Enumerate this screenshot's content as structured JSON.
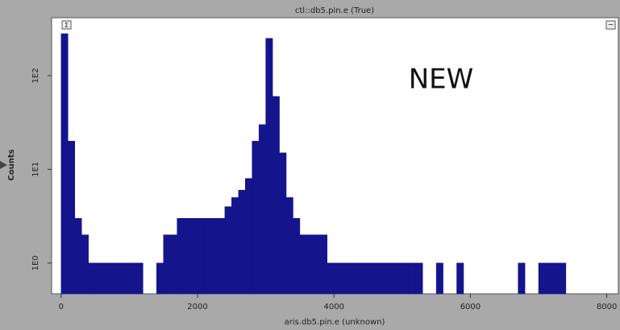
{
  "chart_data": {
    "type": "histogram",
    "title": "ctl::db5.pin.e (True)",
    "xlabel": "aris.db5.pin.e (unknown)",
    "ylabel": "Counts",
    "annotation": "NEW",
    "controls": [
      "Σ",
      "−"
    ],
    "bins": [
      0,
      100,
      200,
      300,
      400,
      500,
      600,
      700,
      800,
      900,
      1000,
      1100,
      1200,
      1300,
      1400,
      1500,
      1600,
      1700,
      1800,
      1900,
      2000,
      2100,
      2200,
      2300,
      2400,
      2500,
      2600,
      2700,
      2800,
      2900,
      3000,
      3100,
      3200,
      3300,
      3400,
      3500,
      3600,
      3700,
      3800,
      3900,
      4000,
      4100,
      4200,
      4300,
      4400,
      4500,
      4600,
      4700,
      4800,
      4900,
      5000,
      5100,
      5200,
      5300,
      5400,
      5500,
      5600,
      5700,
      5800,
      5900,
      6000,
      6100,
      6200,
      6300,
      6400,
      6500,
      6600,
      6700,
      6800,
      6900,
      7000,
      7100,
      7200,
      7300,
      7400,
      7500,
      7600,
      7700,
      7800,
      7900,
      8000,
      8100
    ],
    "values": [
      280,
      20,
      3,
      2,
      1,
      1,
      1,
      1,
      1,
      1,
      1,
      1,
      0,
      0,
      1,
      2,
      2,
      3,
      3,
      3,
      3,
      3,
      3,
      3,
      4,
      5,
      6,
      8,
      20,
      30,
      250,
      60,
      15,
      5,
      3,
      2,
      2,
      2,
      2,
      1,
      1,
      1,
      1,
      1,
      1,
      1,
      1,
      1,
      1,
      1,
      1,
      1,
      1,
      0,
      0,
      1,
      0,
      0,
      1,
      0,
      0,
      0,
      0,
      0,
      0,
      0,
      0,
      1,
      0,
      0,
      1,
      1,
      1,
      1,
      0,
      0,
      0,
      0,
      0,
      0,
      0
    ],
    "color": "#14148c",
    "xlim": [
      -140,
      8170
    ],
    "xticks": [
      0,
      2000,
      4000,
      6000,
      8000
    ],
    "ylim": [
      0.47,
      415
    ],
    "log_y": true,
    "yticks": [
      {
        "value": 1,
        "label": "1E0"
      },
      {
        "value": 10,
        "label": "1E1"
      },
      {
        "value": 100,
        "label": "1E2"
      }
    ]
  }
}
